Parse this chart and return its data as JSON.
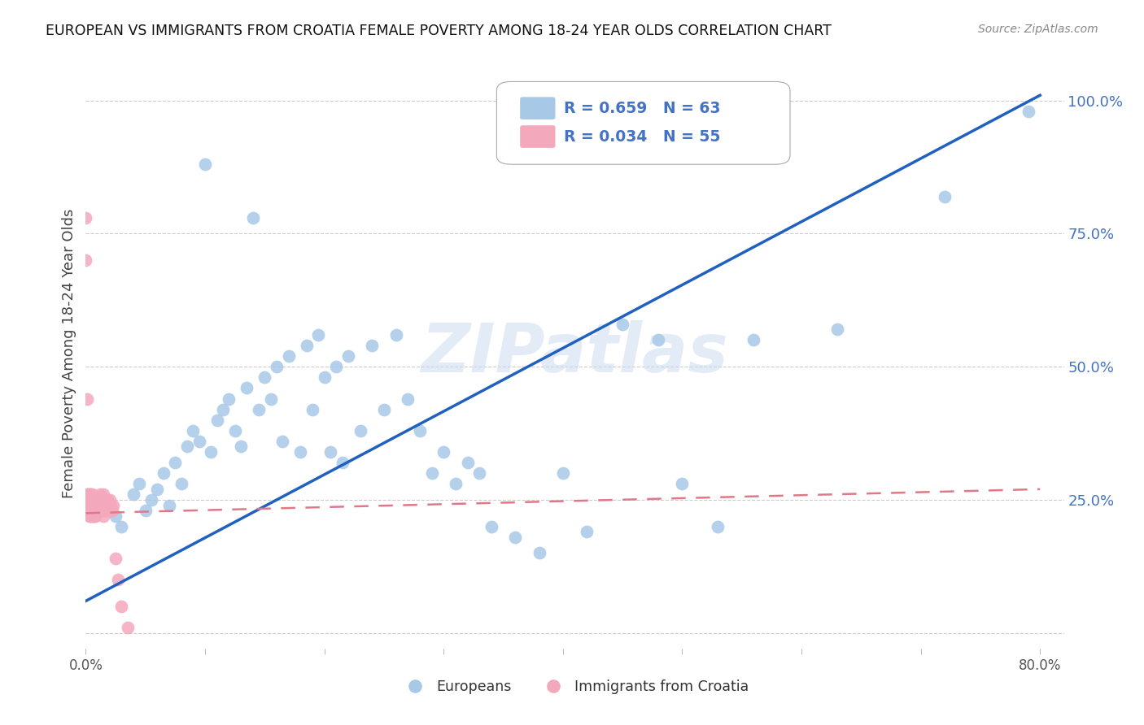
{
  "title": "EUROPEAN VS IMMIGRANTS FROM CROATIA FEMALE POVERTY AMONG 18-24 YEAR OLDS CORRELATION CHART",
  "source": "Source: ZipAtlas.com",
  "ylabel": "Female Poverty Among 18-24 Year Olds",
  "r_european": 0.659,
  "n_european": 63,
  "r_croatia": 0.034,
  "n_croatia": 55,
  "european_color": "#A8C8E8",
  "croatia_color": "#F4A8BC",
  "trendline_european_color": "#2060C0",
  "trendline_croatia_color": "#E07888",
  "watermark": "ZIPatlas",
  "legend_label_european": "Europeans",
  "legend_label_croatia": "Immigrants from Croatia",
  "xlim": [
    0.0,
    0.82
  ],
  "ylim": [
    -0.03,
    1.08
  ],
  "yticks": [
    0.0,
    0.25,
    0.5,
    0.75,
    1.0
  ],
  "ytick_labels": [
    "",
    "25.0%",
    "50.0%",
    "75.0%",
    "100.0%"
  ],
  "xticks": [
    0.0,
    0.1,
    0.2,
    0.3,
    0.4,
    0.5,
    0.6,
    0.7,
    0.8
  ],
  "xtick_labels_show": [
    "0.0%",
    "",
    "",
    "",
    "",
    "",
    "",
    "",
    "80.0%"
  ],
  "background_color": "#FFFFFF",
  "grid_color": "#CCCCCC",
  "eu_trend_x0": 0.0,
  "eu_trend_y0": 0.06,
  "eu_trend_x1": 0.8,
  "eu_trend_y1": 1.01,
  "cr_trend_x0": 0.0,
  "cr_trend_y0": 0.225,
  "cr_trend_x1": 0.8,
  "cr_trend_y1": 0.27,
  "eu_x": [
    0.02,
    0.025,
    0.03,
    0.04,
    0.045,
    0.05,
    0.055,
    0.06,
    0.065,
    0.07,
    0.075,
    0.08,
    0.085,
    0.09,
    0.095,
    0.1,
    0.105,
    0.11,
    0.115,
    0.12,
    0.125,
    0.13,
    0.135,
    0.14,
    0.145,
    0.15,
    0.155,
    0.16,
    0.165,
    0.17,
    0.18,
    0.185,
    0.19,
    0.195,
    0.2,
    0.205,
    0.21,
    0.215,
    0.22,
    0.23,
    0.24,
    0.25,
    0.26,
    0.27,
    0.28,
    0.29,
    0.3,
    0.31,
    0.32,
    0.33,
    0.34,
    0.36,
    0.38,
    0.4,
    0.42,
    0.45,
    0.48,
    0.5,
    0.53,
    0.56,
    0.63,
    0.72,
    0.79
  ],
  "eu_y": [
    0.24,
    0.22,
    0.2,
    0.26,
    0.28,
    0.23,
    0.25,
    0.27,
    0.3,
    0.24,
    0.32,
    0.28,
    0.35,
    0.38,
    0.36,
    0.88,
    0.34,
    0.4,
    0.42,
    0.44,
    0.38,
    0.35,
    0.46,
    0.78,
    0.42,
    0.48,
    0.44,
    0.5,
    0.36,
    0.52,
    0.34,
    0.54,
    0.42,
    0.56,
    0.48,
    0.34,
    0.5,
    0.32,
    0.52,
    0.38,
    0.54,
    0.42,
    0.56,
    0.44,
    0.38,
    0.3,
    0.34,
    0.28,
    0.32,
    0.3,
    0.2,
    0.18,
    0.15,
    0.3,
    0.19,
    0.58,
    0.55,
    0.28,
    0.2,
    0.55,
    0.57,
    0.82,
    0.98
  ],
  "cr_x": [
    0.0,
    0.0,
    0.001,
    0.001,
    0.002,
    0.002,
    0.003,
    0.003,
    0.003,
    0.004,
    0.004,
    0.004,
    0.005,
    0.005,
    0.005,
    0.006,
    0.006,
    0.006,
    0.007,
    0.007,
    0.007,
    0.008,
    0.008,
    0.008,
    0.009,
    0.009,
    0.01,
    0.01,
    0.011,
    0.011,
    0.012,
    0.012,
    0.013,
    0.013,
    0.014,
    0.014,
    0.015,
    0.015,
    0.015,
    0.016,
    0.016,
    0.017,
    0.017,
    0.018,
    0.018,
    0.019,
    0.02,
    0.02,
    0.021,
    0.022,
    0.023,
    0.025,
    0.027,
    0.03,
    0.035
  ],
  "cr_y": [
    0.78,
    0.7,
    0.44,
    0.26,
    0.26,
    0.24,
    0.26,
    0.24,
    0.22,
    0.26,
    0.24,
    0.22,
    0.26,
    0.24,
    0.22,
    0.25,
    0.24,
    0.22,
    0.25,
    0.23,
    0.22,
    0.25,
    0.24,
    0.22,
    0.25,
    0.23,
    0.25,
    0.23,
    0.25,
    0.23,
    0.26,
    0.24,
    0.25,
    0.23,
    0.25,
    0.24,
    0.26,
    0.24,
    0.22,
    0.25,
    0.23,
    0.25,
    0.23,
    0.25,
    0.23,
    0.24,
    0.25,
    0.23,
    0.24,
    0.23,
    0.24,
    0.14,
    0.1,
    0.05,
    0.01
  ]
}
